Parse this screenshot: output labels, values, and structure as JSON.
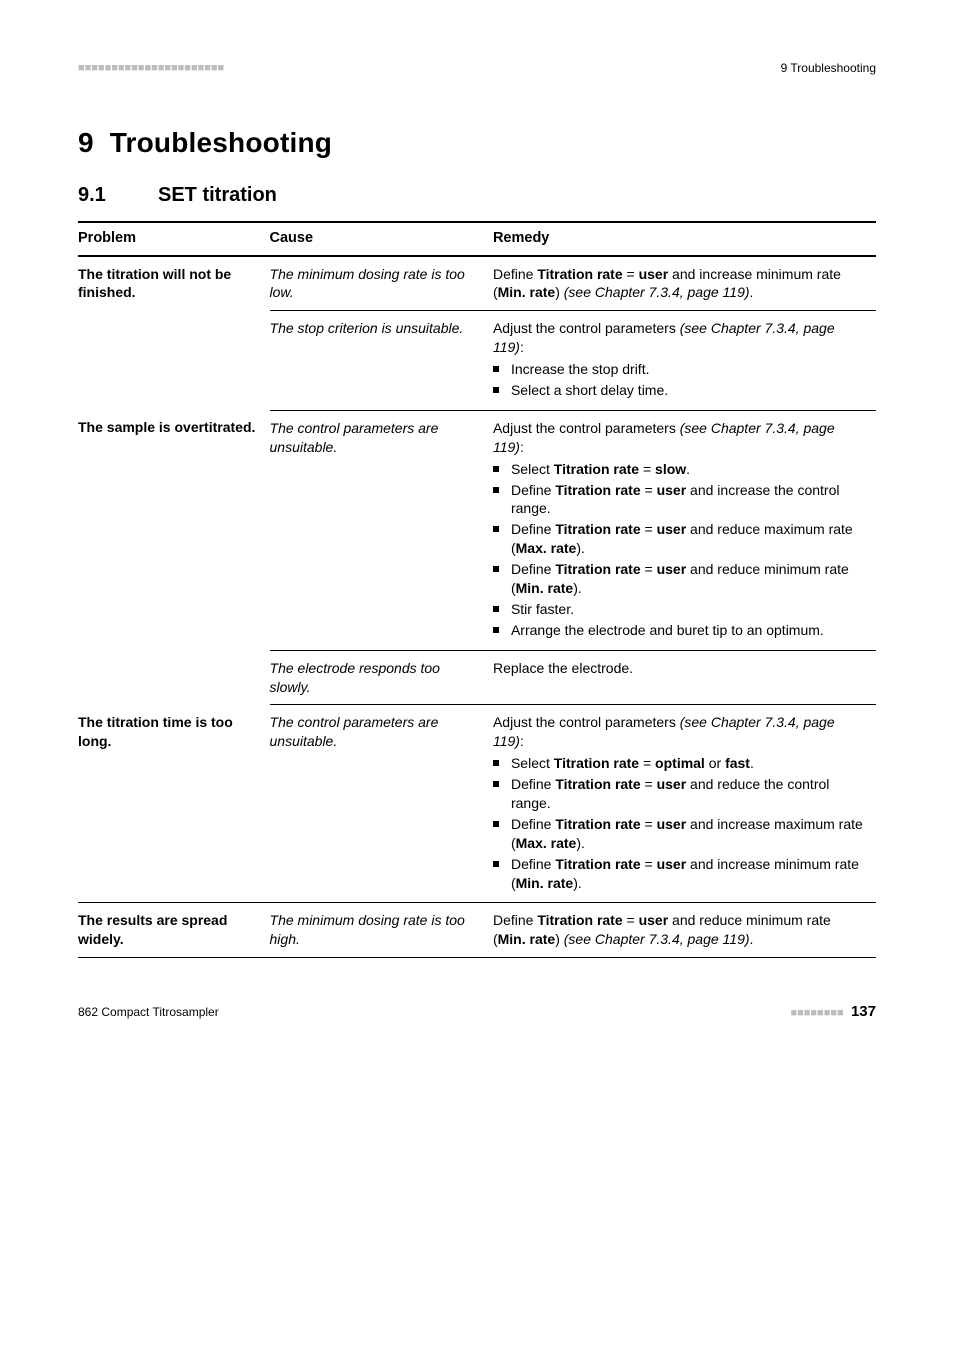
{
  "header": {
    "squares": "■■■■■■■■■■■■■■■■■■■■■■",
    "running_head": "9 Troubleshooting"
  },
  "chapter": {
    "number": "9",
    "title": "Troubleshooting"
  },
  "section": {
    "number": "9.1",
    "title": "SET titration"
  },
  "table": {
    "columns": [
      "Problem",
      "Cause",
      "Remedy"
    ],
    "groups": [
      {
        "problem": "The titration will not be finished.",
        "rows": [
          {
            "cause": "The minimum dosing rate is too low.",
            "remedy_html": "Define <b>Titration rate</b> = <b>user</b> and increase minimum rate (<b>Min. rate</b>) <i>(see Chapter 7.3.4, page 119)</i>."
          },
          {
            "cause": "The stop criterion is unsuitable.",
            "remedy_intro_html": "Adjust the control parameters <i>(see Chapter 7.3.4, page 119)</i>:",
            "remedy_items_html": [
              "Increase the stop drift.",
              "Select a short delay time."
            ]
          }
        ]
      },
      {
        "problem": "The sample is overtitrated.",
        "rows": [
          {
            "cause": "The control parameters are unsuitable.",
            "remedy_intro_html": "Adjust the control parameters <i>(see Chapter 7.3.4, page 119)</i>:",
            "remedy_items_html": [
              "Select <b>Titration rate</b> = <b>slow</b>.",
              "Define <b>Titration rate</b> = <b>user</b> and increase the control range.",
              "Define <b>Titration rate</b> = <b>user</b> and reduce maximum rate (<b>Max. rate</b>).",
              "Define <b>Titration rate</b> = <b>user</b> and reduce minimum rate (<b>Min. rate</b>).",
              "Stir faster.",
              "Arrange the electrode and buret tip to an optimum."
            ]
          },
          {
            "cause": "The electrode responds too slowly.",
            "remedy_html": "Replace the electrode."
          }
        ]
      },
      {
        "problem": "The titration time is too long.",
        "rows": [
          {
            "cause": "The control parameters are unsuitable.",
            "remedy_intro_html": "Adjust the control parameters <i>(see Chapter 7.3.4, page 119)</i>:",
            "remedy_items_html": [
              "Select <b>Titration rate</b> = <b>optimal</b> or <b>fast</b>.",
              "Define <b>Titration rate</b> = <b>user</b> and reduce the control range.",
              "Define <b>Titration rate</b> = <b>user</b> and increase maximum rate (<b>Max. rate</b>).",
              "Define <b>Titration rate</b> = <b>user</b> and increase minimum rate (<b>Min. rate</b>)."
            ]
          }
        ]
      },
      {
        "problem": "The results are spread widely.",
        "rows": [
          {
            "cause": "The minimum dosing rate is too high.",
            "remedy_html": "Define <b>Titration rate</b> = <b>user</b> and reduce minimum rate (<b>Min. rate</b>) <i>(see Chapter 7.3.4, page 119)</i>."
          }
        ]
      }
    ]
  },
  "footer": {
    "product": "862 Compact Titrosampler",
    "squares": "■■■■■■■■",
    "page": "137"
  }
}
